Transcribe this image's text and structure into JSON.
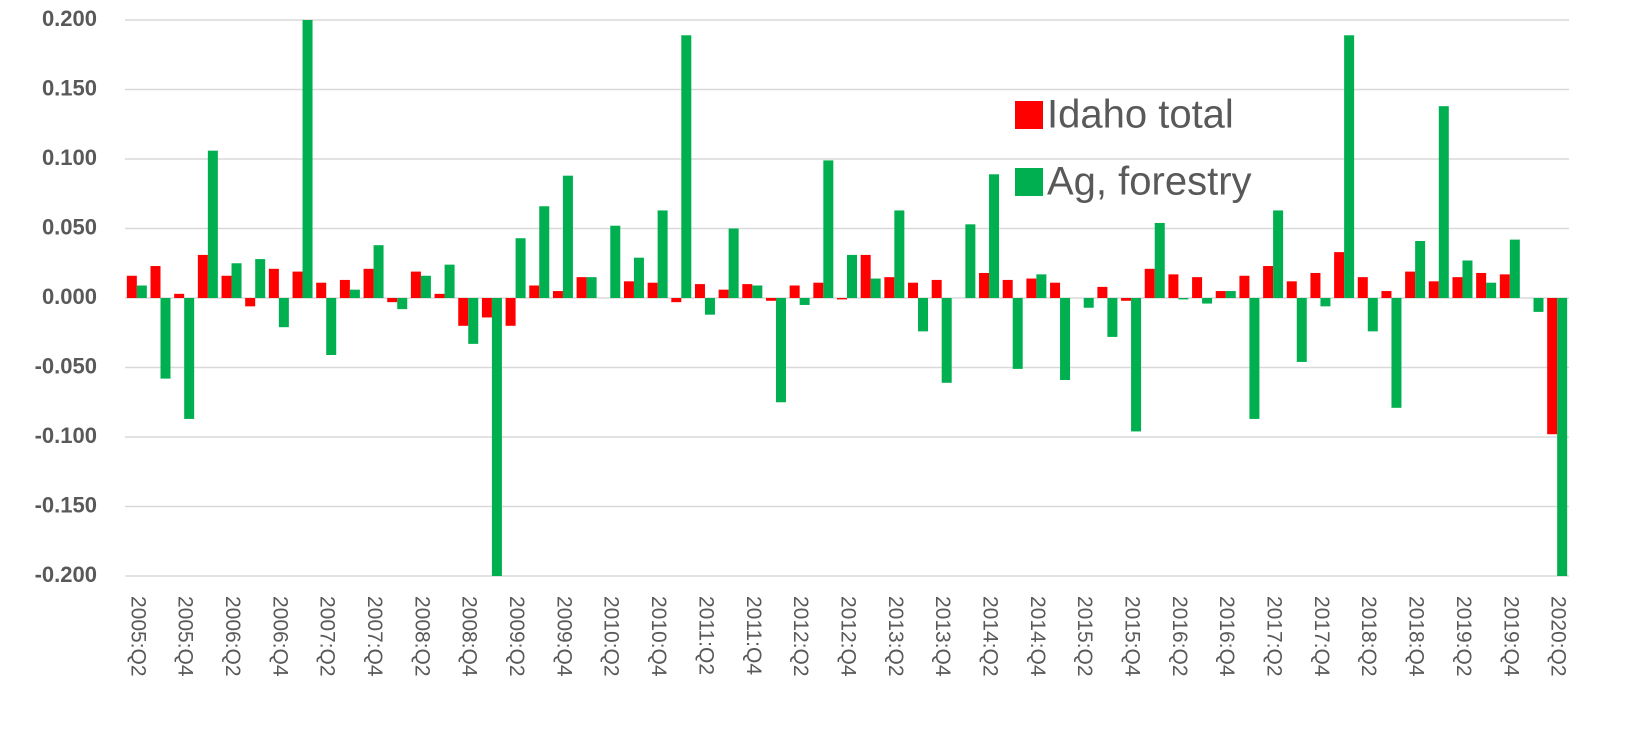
{
  "chart_data": {
    "type": "bar",
    "categories": [
      "2005:Q2",
      null,
      "2005:Q4",
      null,
      "2006:Q2",
      null,
      "2006:Q4",
      null,
      "2007:Q2",
      null,
      "2007:Q4",
      null,
      "2008:Q2",
      null,
      "2008:Q4",
      null,
      "2009:Q2",
      null,
      "2009:Q4",
      null,
      "2010:Q2",
      null,
      "2010:Q4",
      null,
      "2011:Q2",
      null,
      "2011:Q4",
      null,
      "2012:Q2",
      null,
      "2012:Q4",
      null,
      "2013:Q2",
      null,
      "2013:Q4",
      null,
      "2014:Q2",
      null,
      "2014:Q4",
      null,
      "2015:Q2",
      null,
      "2015:Q4",
      null,
      "2016:Q2",
      null,
      "2016:Q4",
      null,
      "2017:Q2",
      null,
      "2017:Q4",
      null,
      "2018:Q2",
      null,
      "2018:Q4",
      null,
      "2019:Q2",
      null,
      "2019:Q4",
      null,
      "2020:Q2"
    ],
    "series": [
      {
        "name": "Idaho total",
        "color": "#ff0000",
        "values": [
          0.016,
          0.023,
          0.003,
          0.031,
          0.016,
          -0.006,
          0.021,
          0.019,
          0.011,
          0.013,
          0.021,
          -0.003,
          0.019,
          0.003,
          -0.02,
          -0.014,
          -0.02,
          0.009,
          0.005,
          0.015,
          0,
          0.012,
          0.011,
          -0.003,
          0.01,
          0.006,
          0.01,
          -0.002,
          0.009,
          0.011,
          -0.001,
          0.031,
          0.015,
          0.011,
          0.013,
          0,
          0.018,
          0.013,
          0.014,
          0.011,
          0,
          0.008,
          -0.002,
          0.021,
          0.017,
          0.015,
          0.005,
          0.016,
          0.023,
          0.012,
          0.018,
          0.033,
          0.015,
          0.005,
          0.019,
          0.012,
          0.015,
          0.018,
          0.017,
          0,
          -0.098
        ]
      },
      {
        "name": "Ag, forestry",
        "color": "#00b050",
        "values": [
          0.009,
          -0.058,
          -0.087,
          0.106,
          0.025,
          0.028,
          -0.021,
          0.2,
          -0.041,
          0.006,
          0.038,
          -0.008,
          0.016,
          0.024,
          -0.033,
          -0.2,
          0.043,
          0.066,
          0.088,
          0.015,
          0.052,
          0.029,
          0.063,
          0.189,
          -0.012,
          0.05,
          0.009,
          -0.075,
          -0.005,
          0.099,
          0.031,
          0.014,
          0.063,
          -0.024,
          -0.061,
          0.053,
          0.089,
          -0.051,
          0.017,
          -0.059,
          -0.007,
          -0.028,
          -0.096,
          0.054,
          -0.001,
          -0.004,
          0.005,
          -0.087,
          0.063,
          -0.046,
          -0.006,
          0.189,
          -0.024,
          -0.079,
          0.041,
          0.138,
          0.027,
          0.011,
          0.042,
          -0.01,
          -0.2
        ]
      }
    ],
    "ylim": [
      -0.2,
      0.2
    ],
    "yticks": [
      {
        "value": -0.2,
        "label": "-0.200"
      },
      {
        "value": -0.15,
        "label": "-0.150"
      },
      {
        "value": -0.1,
        "label": "-0.100"
      },
      {
        "value": -0.05,
        "label": "-0.050"
      },
      {
        "value": 0,
        "label": "0.000"
      },
      {
        "value": 0.05,
        "label": "0.050"
      },
      {
        "value": 0.1,
        "label": "0.100"
      },
      {
        "value": 0.15,
        "label": "0.150"
      },
      {
        "value": 0.2,
        "label": "0.200"
      }
    ],
    "grid": true,
    "legend": "upper right"
  }
}
